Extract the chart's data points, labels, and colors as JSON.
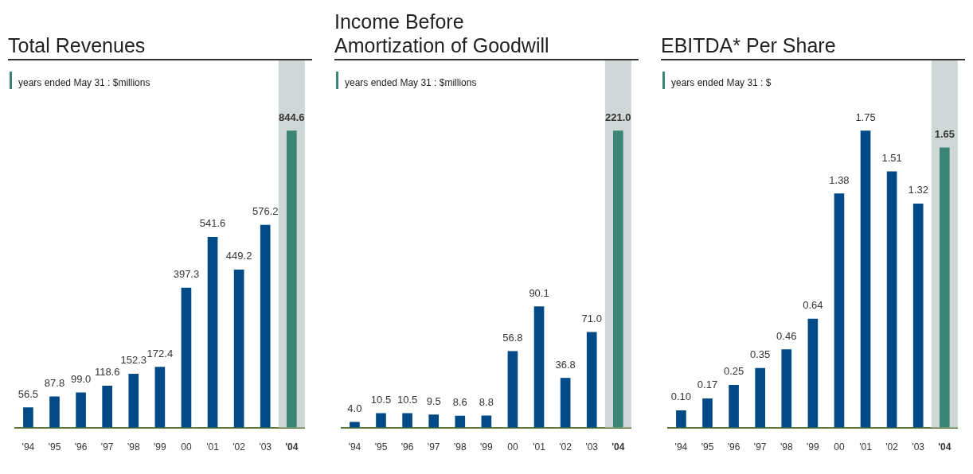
{
  "chart_data": [
    {
      "type": "bar",
      "title": "Total Revenues",
      "subtitle": "years ended May 31 : $millions",
      "categories": [
        "'94",
        "'95",
        "'96",
        "'97",
        "'98",
        "'99",
        "00",
        "'01",
        "'02",
        "'03",
        "'04"
      ],
      "values": [
        56.5,
        87.8,
        99.0,
        118.6,
        152.3,
        172.4,
        397.3,
        541.6,
        449.2,
        576.2,
        844.6
      ],
      "colors": [
        "#004b87",
        "#004b87",
        "#004b87",
        "#004b87",
        "#004b87",
        "#004b87",
        "#004b87",
        "#004b87",
        "#004b87",
        "#004b87",
        "#3a8574"
      ],
      "value_labels": [
        "56.5",
        "87.8",
        "99.0",
        "118.6",
        "152.3",
        "172.4",
        "397.3",
        "541.6",
        "449.2",
        "576.2",
        "844.6"
      ],
      "bands": [
        {
          "axis": "x",
          "from": "'04",
          "to": "'04",
          "color": "#cfd8d6"
        }
      ],
      "grid": false,
      "legend": false,
      "tick_labels": "x"
    },
    {
      "type": "bar",
      "title": "Income Before Amortization of Goodwill",
      "subtitle": "years ended May 31 : $millions",
      "categories": [
        "'94",
        "'95",
        "'96",
        "'97",
        "'98",
        "'99",
        "00",
        "'01",
        "'02",
        "'03",
        "'04"
      ],
      "values": [
        4.0,
        10.5,
        10.5,
        9.5,
        8.6,
        8.8,
        56.8,
        90.1,
        36.8,
        71.0,
        221.0
      ],
      "colors": [
        "#004b87",
        "#004b87",
        "#004b87",
        "#004b87",
        "#004b87",
        "#004b87",
        "#004b87",
        "#004b87",
        "#004b87",
        "#004b87",
        "#3a8574"
      ],
      "value_labels": [
        "4.0",
        "10.5",
        "10.5",
        "9.5",
        "8.6",
        "8.8",
        "56.8",
        "90.1",
        "36.8",
        "71.0",
        "221.0"
      ],
      "bands": [
        {
          "axis": "x",
          "from": "'04",
          "to": "'04",
          "color": "#cfd8d6"
        }
      ],
      "grid": false,
      "legend": false,
      "tick_labels": "x"
    },
    {
      "type": "bar",
      "title": "EBITDA* Per Share",
      "subtitle": "years ended May 31 : $",
      "categories": [
        "'94",
        "'95",
        "'96",
        "'97",
        "'98",
        "'99",
        "00",
        "'01",
        "'02",
        "'03",
        "'04"
      ],
      "values": [
        0.1,
        0.17,
        0.25,
        0.35,
        0.46,
        0.64,
        1.38,
        1.75,
        1.51,
        1.32,
        1.65
      ],
      "colors": [
        "#004b87",
        "#004b87",
        "#004b87",
        "#004b87",
        "#004b87",
        "#004b87",
        "#004b87",
        "#004b87",
        "#004b87",
        "#004b87",
        "#3a8574"
      ],
      "value_labels": [
        "0.10",
        "0.17",
        "0.25",
        "0.35",
        "0.46",
        "0.64",
        "1.38",
        "1.75",
        "1.51",
        "1.32",
        "1.65"
      ],
      "bands": [
        {
          "axis": "x",
          "from": "'04",
          "to": "'04",
          "color": "#cfd8d6"
        }
      ],
      "grid": false,
      "legend": false,
      "tick_labels": "x"
    }
  ]
}
